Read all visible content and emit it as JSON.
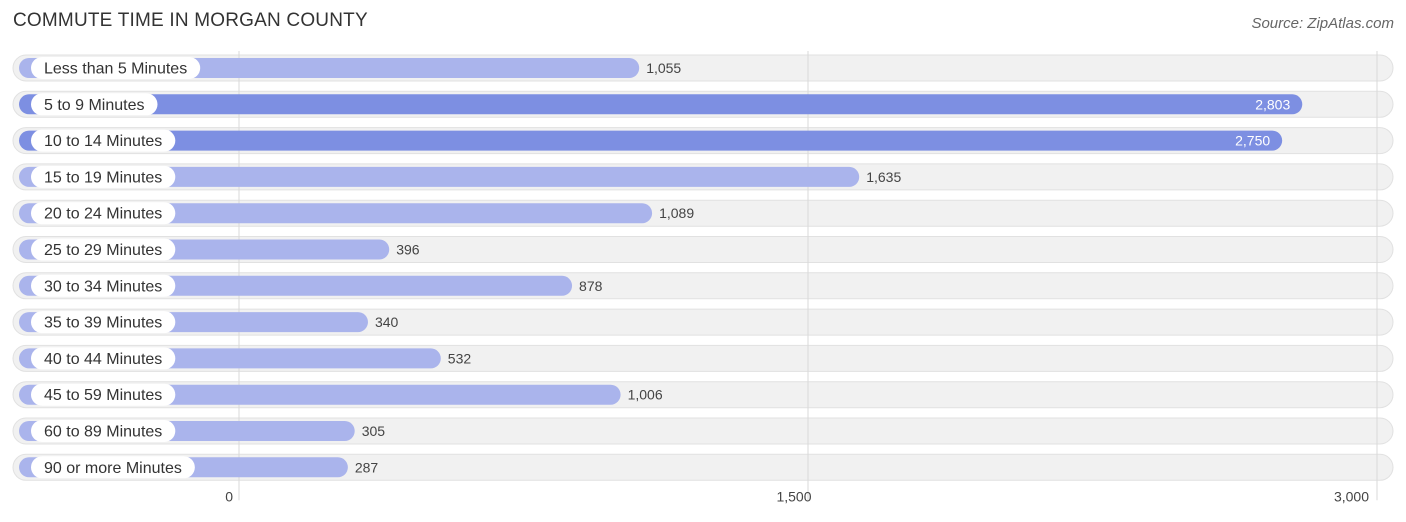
{
  "header": {
    "title": "COMMUTE TIME IN MORGAN COUNTY",
    "source": "Source: ZipAtlas.com"
  },
  "colors": {
    "bar_light": "#aab4ec",
    "bar_dark": "#7d8fe2",
    "background_row": "#f1f1f1"
  },
  "chart_data": {
    "type": "bar",
    "orientation": "horizontal",
    "title": "COMMUTE TIME IN MORGAN COUNTY",
    "categories": [
      "Less than 5 Minutes",
      "5 to 9 Minutes",
      "10 to 14 Minutes",
      "15 to 19 Minutes",
      "20 to 24 Minutes",
      "25 to 29 Minutes",
      "30 to 34 Minutes",
      "35 to 39 Minutes",
      "40 to 44 Minutes",
      "45 to 59 Minutes",
      "60 to 89 Minutes",
      "90 or more Minutes"
    ],
    "values": [
      1055,
      2803,
      2750,
      1635,
      1089,
      396,
      878,
      340,
      532,
      1006,
      305,
      287
    ],
    "value_labels": [
      "1,055",
      "2,803",
      "2,750",
      "1,635",
      "1,089",
      "396",
      "878",
      "340",
      "532",
      "1,006",
      "305",
      "287"
    ],
    "xlim": [
      0,
      3000
    ],
    "xticks": [
      0,
      1500,
      3000
    ],
    "xtick_labels": [
      "0",
      "1,500",
      "3,000"
    ],
    "xlabel": "",
    "ylabel": "",
    "grid": true
  }
}
